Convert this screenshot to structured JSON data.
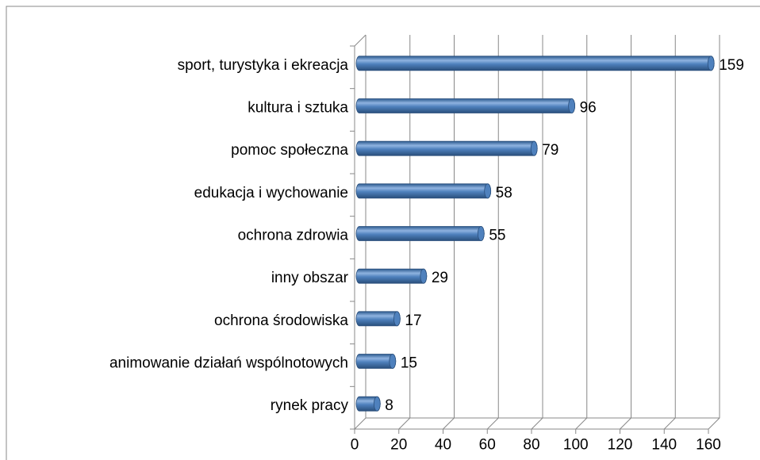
{
  "chart_data": {
    "type": "bar",
    "orientation": "horizontal",
    "categories": [
      "sport, turystyka i ekreacja",
      "kultura i sztuka",
      "pomoc społeczna",
      "edukacja i wychowanie",
      "ochrona zdrowia",
      "inny obszar",
      "ochrona środowiska",
      "animowanie działań wspólnotowych",
      "rynek pracy"
    ],
    "values": [
      159,
      96,
      79,
      58,
      55,
      29,
      17,
      15,
      8
    ],
    "color": "#4f81bd",
    "xlim": [
      0,
      160
    ],
    "xticks": [
      0,
      20,
      40,
      60,
      80,
      100,
      120,
      140,
      160
    ],
    "grid": true
  }
}
